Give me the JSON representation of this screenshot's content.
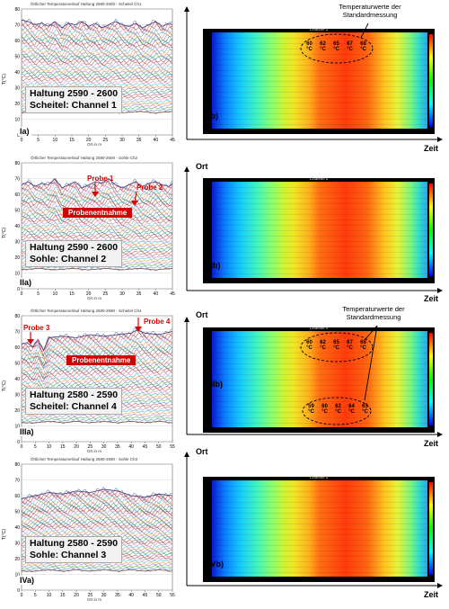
{
  "panels": [
    {
      "id": "Ia",
      "title": "Örtlicher Temperaturverlauf Haltung 2590-2600 - Scheitel Ch1",
      "ylabel": "T(°C)",
      "xlabel": "Ort in m",
      "xticks": [
        "0",
        "5",
        "10",
        "15",
        "20",
        "25",
        "30",
        "35",
        "40",
        "45"
      ],
      "yticks": [
        "80",
        "70",
        "60",
        "50",
        "40",
        "30",
        "20",
        "10",
        "0"
      ],
      "box_line1": "Haltung 2590 - 2600",
      "box_line2": "Scheitel: Channel 1",
      "panel_label": "Ia)",
      "heatmap_label": "Ib)",
      "heatmap_title": "Channel 1"
    },
    {
      "id": "IIa",
      "title": "Örtlicher Temperaturverlauf Haltung 2590-2600 - Sohle Ch2",
      "ylabel": "T(°C)",
      "xlabel": "Ort in m",
      "xticks": [
        "0",
        "5",
        "10",
        "15",
        "20",
        "25",
        "30",
        "35",
        "40",
        "45"
      ],
      "yticks": [
        "80",
        "70",
        "60",
        "50",
        "40",
        "30",
        "20",
        "10",
        "0"
      ],
      "box_line1": "Haltung 2590 - 2600",
      "box_line2": "Sohle: Channel 2",
      "panel_label": "IIa)",
      "heatmap_label": "IIb)",
      "heatmap_title": "Channel 2"
    },
    {
      "id": "IIIa",
      "title": "Örtlicher Temperaturverlauf Haltung 2580-2590 - Scheitel Ch4",
      "ylabel": "T(°C)",
      "xlabel": "Ort in m",
      "xticks": [
        "0",
        "5",
        "10",
        "15",
        "20",
        "25",
        "30",
        "35",
        "40",
        "45",
        "50",
        "55"
      ],
      "yticks": [
        "80",
        "70",
        "60",
        "50",
        "40",
        "30",
        "20",
        "10",
        "0"
      ],
      "box_line1": "Haltung 2580 - 2590",
      "box_line2": "Scheitel: Channel 4",
      "panel_label": "IIIa)",
      "heatmap_label": "IIIb)",
      "heatmap_title": "Channel 4"
    },
    {
      "id": "IVa",
      "title": "Örtlicher Temperaturverlauf Haltung 2580-2590 - Sohle Ch3",
      "ylabel": "T(°C)",
      "xlabel": "Ort in m",
      "xticks": [
        "0",
        "5",
        "10",
        "15",
        "20",
        "25",
        "30",
        "35",
        "40",
        "45",
        "50",
        "55"
      ],
      "yticks": [
        "80",
        "70",
        "60",
        "50",
        "40",
        "30",
        "20",
        "10",
        "0"
      ],
      "box_line1": "Haltung 2580 - 2590",
      "box_line2": "Sohle: Channel 3",
      "panel_label": "IVa)",
      "heatmap_label": "IVb)",
      "heatmap_title": "Channel 3"
    }
  ],
  "annotations": {
    "probe1": "Probe 1",
    "probe2": "Probe 2",
    "probe3": "Probe 3",
    "probe4": "Probe 4",
    "probenentnahme": "Probenentnahme",
    "standard_line1": "Temperaturwerte der",
    "standard_line2": "Standardmessung",
    "ort": "Ort",
    "zeit": "Zeit"
  },
  "standard_values": {
    "Ib": [
      "60 °C",
      "62 °C",
      "65 °C",
      "67 °C",
      "68 °C"
    ],
    "IIIb_top": [
      "60 °C",
      "62 °C",
      "65 °C",
      "67 °C",
      "68 °C"
    ],
    "IIIb_bottom": [
      "59 °C",
      "60 °C",
      "62 °C",
      "64 °C",
      "65 °C"
    ]
  },
  "colors": {
    "red": "#e00000",
    "curve_band": [
      "#d62728",
      "#1f77b4",
      "#2ca02c",
      "#9467bd",
      "#ff7f0e",
      "#17becf",
      "#e377c2",
      "#8c564b"
    ]
  },
  "chart_data": [
    {
      "type": "line",
      "title": "Örtlicher Temperaturverlauf Haltung 2590-2600 - Scheitel Ch1",
      "xlabel": "Ort in m",
      "ylabel": "T(°C)",
      "xlim": [
        0,
        45
      ],
      "ylim": [
        0,
        80
      ],
      "series": [
        {
          "x": [
            0,
            2,
            4,
            6,
            8,
            10,
            12,
            14,
            16,
            18,
            20,
            22,
            24,
            26,
            28,
            30,
            32,
            34,
            36,
            38,
            40,
            42,
            44,
            45
          ],
          "values": [
            73,
            72,
            70,
            71,
            69,
            72,
            68,
            71,
            70,
            72,
            69,
            71,
            68,
            70,
            72,
            70,
            69,
            71,
            68,
            70,
            72,
            69,
            71,
            70
          ]
        },
        {
          "x": [
            0,
            5,
            10,
            15,
            20,
            25,
            30,
            35,
            40,
            45
          ],
          "values": [
            14,
            15,
            14,
            15,
            14,
            15,
            14,
            15,
            14,
            15
          ]
        }
      ]
    },
    {
      "type": "line",
      "title": "Örtlicher Temperaturverlauf Haltung 2590-2600 - Sohle Ch2",
      "xlabel": "Ort in m",
      "ylabel": "T(°C)",
      "xlim": [
        0,
        45
      ],
      "ylim": [
        0,
        80
      ],
      "series": [
        {
          "x": [
            0,
            2,
            4,
            6,
            8,
            10,
            12,
            14,
            16,
            18,
            20,
            22,
            24,
            26,
            28,
            30,
            32,
            34,
            36,
            38,
            40,
            42,
            44,
            45
          ],
          "values": [
            66,
            68,
            65,
            67,
            66,
            70,
            64,
            66,
            68,
            64,
            66,
            68,
            67,
            70,
            66,
            64,
            66,
            68,
            65,
            67,
            68,
            66,
            65,
            67
          ]
        },
        {
          "x": [
            0,
            5,
            10,
            15,
            20,
            25,
            30,
            35,
            40,
            45
          ],
          "values": [
            12,
            13,
            12,
            13,
            12,
            13,
            12,
            13,
            12,
            13
          ]
        }
      ]
    },
    {
      "type": "line",
      "title": "Örtlicher Temperaturverlauf Haltung 2580-2590 - Scheitel Ch4",
      "xlabel": "Ort in m",
      "ylabel": "T(°C)",
      "xlim": [
        0,
        55
      ],
      "ylim": [
        0,
        80
      ],
      "series": [
        {
          "x": [
            0,
            2,
            4,
            6,
            8,
            10,
            15,
            20,
            25,
            30,
            35,
            40,
            42,
            45,
            50,
            55
          ],
          "values": [
            62,
            63,
            60,
            65,
            58,
            66,
            67,
            66,
            68,
            67,
            68,
            69,
            71,
            69,
            68,
            70
          ]
        },
        {
          "x": [
            0,
            5,
            10,
            15,
            20,
            25,
            30,
            35,
            40,
            45,
            50,
            55
          ],
          "values": [
            12,
            12,
            13,
            12,
            13,
            12,
            13,
            12,
            13,
            12,
            13,
            12
          ]
        }
      ]
    },
    {
      "type": "line",
      "title": "Örtlicher Temperaturverlauf Haltung 2580-2590 - Sohle Ch3",
      "xlabel": "Ort in m",
      "ylabel": "T(°C)",
      "xlim": [
        0,
        55
      ],
      "ylim": [
        0,
        80
      ],
      "series": [
        {
          "x": [
            0,
            5,
            10,
            15,
            20,
            25,
            30,
            35,
            40,
            45,
            50,
            55
          ],
          "values": [
            58,
            60,
            62,
            61,
            63,
            62,
            64,
            63,
            60,
            59,
            61,
            60
          ]
        },
        {
          "x": [
            0,
            5,
            10,
            15,
            20,
            25,
            30,
            35,
            40,
            45,
            50,
            55
          ],
          "values": [
            12,
            12,
            13,
            12,
            13,
            12,
            13,
            12,
            13,
            12,
            13,
            12
          ]
        }
      ]
    }
  ]
}
